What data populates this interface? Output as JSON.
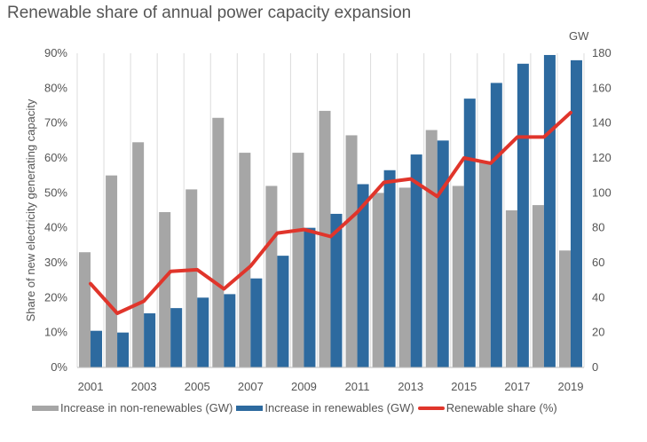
{
  "chart_data": {
    "type": "bar",
    "title": "Renewable share of annual power capacity expansion",
    "categories": [
      "2001",
      "2002",
      "2003",
      "2004",
      "2005",
      "2006",
      "2007",
      "2008",
      "2009",
      "2010",
      "2011",
      "2012",
      "2013",
      "2014",
      "2015",
      "2016",
      "2017",
      "2018",
      "2019"
    ],
    "x_tick_labels": [
      "2001",
      "2003",
      "2005",
      "2007",
      "2009",
      "2011",
      "2013",
      "2015",
      "2017",
      "2019"
    ],
    "series": [
      {
        "name": "Increase in non-renewables (GW)",
        "axis": "right",
        "kind": "bar",
        "color": "#a6a6a6",
        "values": [
          66,
          110,
          129,
          89,
          102,
          143,
          123,
          104,
          123,
          147,
          133,
          100,
          103,
          136,
          104,
          118,
          90,
          93,
          67
        ]
      },
      {
        "name": "Increase in renewables (GW)",
        "axis": "right",
        "kind": "bar",
        "color": "#2d6a9f",
        "values": [
          21,
          20,
          31,
          34,
          40,
          42,
          51,
          64,
          80,
          88,
          105,
          113,
          122,
          130,
          154,
          163,
          174,
          179,
          176
        ]
      },
      {
        "name": "Renewable share (%)",
        "axis": "left",
        "kind": "line",
        "color": "#e0352b",
        "values": [
          24,
          15.5,
          19,
          27.5,
          28,
          22.5,
          29,
          38.5,
          39.5,
          37.5,
          44.5,
          53,
          54,
          49,
          60,
          58.5,
          66,
          66,
          73
        ]
      }
    ],
    "y_left": {
      "label": "Share of new electricity generating capacity",
      "ticks": [
        "0%",
        "10%",
        "20%",
        "30%",
        "40%",
        "50%",
        "60%",
        "70%",
        "80%",
        "90%"
      ],
      "range": [
        0,
        90
      ]
    },
    "y_right": {
      "label": "GW",
      "ticks": [
        "0",
        "20",
        "40",
        "60",
        "80",
        "100",
        "120",
        "140",
        "160",
        "180"
      ],
      "range": [
        0,
        180
      ]
    },
    "grid": "vertical",
    "legend_position": "bottom"
  }
}
